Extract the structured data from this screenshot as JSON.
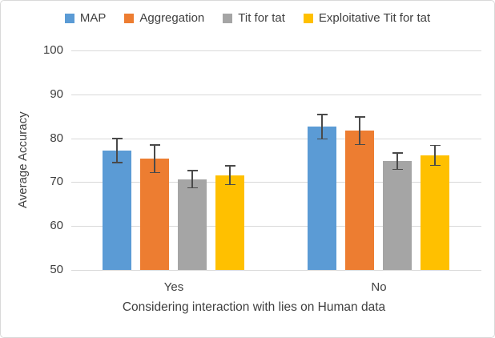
{
  "chart_data": {
    "type": "bar",
    "title": "",
    "categories": [
      "Yes",
      "No"
    ],
    "series": [
      {
        "name": "MAP",
        "color": "#5B9BD5",
        "values": [
          77.2,
          82.6
        ],
        "errors": [
          2.9,
          2.9
        ]
      },
      {
        "name": "Aggregation",
        "color": "#ED7D31",
        "values": [
          75.3,
          81.7
        ],
        "errors": [
          3.3,
          3.3
        ]
      },
      {
        "name": "Tit for tat",
        "color": "#A5A5A5",
        "values": [
          70.7,
          74.8
        ],
        "errors": [
          2.1,
          2.0
        ]
      },
      {
        "name": "Exploitative Tit for tat",
        "color": "#FFC000",
        "values": [
          71.6,
          76.1
        ],
        "errors": [
          2.3,
          2.4
        ]
      }
    ],
    "xlabel": "Considering interaction with lies on Human data",
    "ylabel": "Average Accuracy",
    "ylim": [
      50,
      100
    ],
    "yticks": [
      50,
      60,
      70,
      80,
      90,
      100
    ],
    "grid": true,
    "legend_position": "top",
    "error_bars": true
  },
  "colors": {
    "background": "#FFFFFF",
    "chart_border": "#D9D9D9",
    "gridline": "#D9D9D9",
    "axis_line": "#D9D9D9",
    "error_bar": "#4A4A4A",
    "text": "#404040"
  }
}
